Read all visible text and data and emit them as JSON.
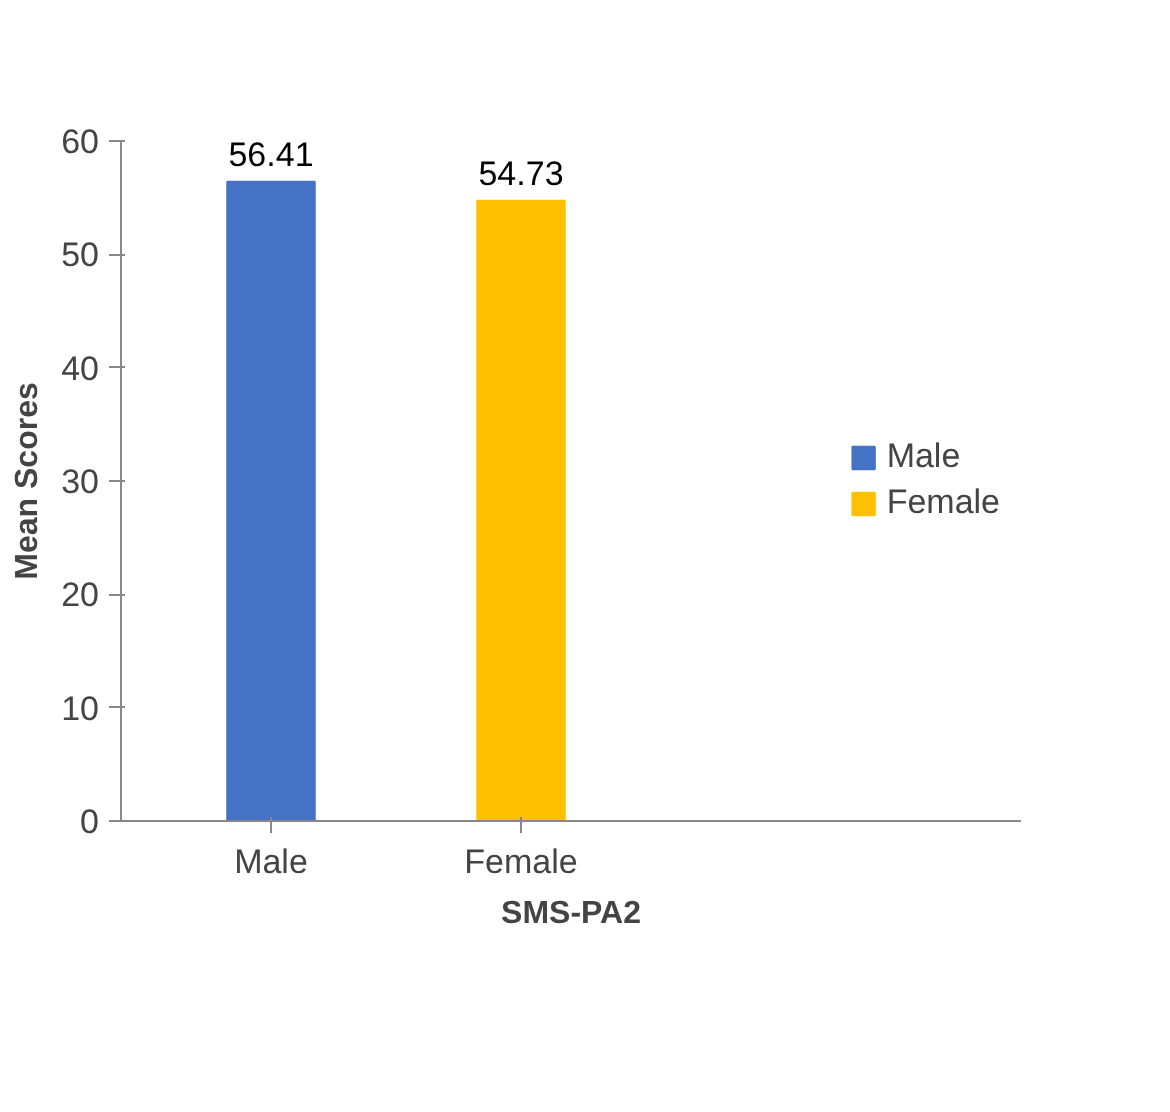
{
  "chart_data": {
    "type": "bar",
    "categories": [
      "Male",
      "Female"
    ],
    "xlabel": "SMS-PA2",
    "ylabel": "Mean Scores",
    "series": [
      {
        "name": "Male",
        "color": "#4472c4",
        "values": [
          56.41,
          null
        ]
      },
      {
        "name": "Female",
        "color": "#ffc000",
        "values": [
          null,
          54.73
        ]
      }
    ],
    "ylim": [
      0,
      60
    ],
    "yticks": [
      0,
      10,
      20,
      30,
      40,
      50,
      60
    ],
    "data_labels": true,
    "legend": "right",
    "grid": false
  }
}
